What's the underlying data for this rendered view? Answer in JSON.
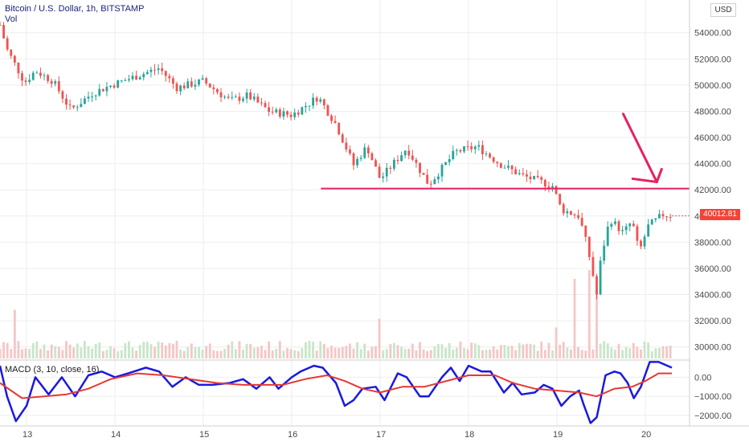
{
  "header": {
    "symbol_line": "Bitcoin / U.S. Dollar, 1h, BITSTAMP",
    "vol_label": "Vol"
  },
  "currency_badge": "USD",
  "last_price_badge": "40012.81",
  "macd_title": "MACD (3, 10, close, 16)",
  "colors": {
    "up": "#26a69a",
    "down": "#ef5350",
    "vol_up": "#c8e6c9",
    "vol_down": "#f5c6c6",
    "annotation": "#e91e63",
    "macd": "#1a1adf",
    "signal": "#e53935",
    "grid": "#eeeeee",
    "badge_bg": "#f44336"
  },
  "chart_data": [
    {
      "type": "candlestick",
      "title": "Bitcoin / U.S. Dollar, 1h, BITSTAMP",
      "x_ticks": [
        "13",
        "14",
        "15",
        "16",
        "17",
        "18",
        "19",
        "20"
      ],
      "x_range_days": [
        12.7,
        20.5
      ],
      "y_ticks": [
        30000,
        32000,
        34000,
        36000,
        38000,
        40000,
        42000,
        44000,
        46000,
        48000,
        50000,
        52000,
        54000
      ],
      "ylim": [
        29000,
        56500
      ],
      "last_price": 40012.81,
      "annotations": {
        "horizontal_line": {
          "price": 42100,
          "from_day": 16.33,
          "to_day": 20.5
        },
        "arrow": {
          "from": {
            "day": 19.75,
            "price": 47800
          },
          "to": {
            "day": 20.13,
            "price": 42600
          }
        }
      },
      "key_points": [
        {
          "day": 12.7,
          "price": 54600
        },
        {
          "day": 12.78,
          "price": 52700
        },
        {
          "day": 12.98,
          "price": 50200
        },
        {
          "day": 13.1,
          "price": 51100
        },
        {
          "day": 13.3,
          "price": 50300
        },
        {
          "day": 13.5,
          "price": 48100
        },
        {
          "day": 13.75,
          "price": 49400
        },
        {
          "day": 14.0,
          "price": 50100
        },
        {
          "day": 14.5,
          "price": 51300
        },
        {
          "day": 14.7,
          "price": 49800
        },
        {
          "day": 15.0,
          "price": 50300
        },
        {
          "day": 15.3,
          "price": 48800
        },
        {
          "day": 15.5,
          "price": 49200
        },
        {
          "day": 15.75,
          "price": 48000
        },
        {
          "day": 16.0,
          "price": 47700
        },
        {
          "day": 16.3,
          "price": 49100
        },
        {
          "day": 16.5,
          "price": 47000
        },
        {
          "day": 16.7,
          "price": 43900
        },
        {
          "day": 16.85,
          "price": 45300
        },
        {
          "day": 17.0,
          "price": 42800
        },
        {
          "day": 17.3,
          "price": 45200
        },
        {
          "day": 17.55,
          "price": 42400
        },
        {
          "day": 17.85,
          "price": 44900
        },
        {
          "day": 18.1,
          "price": 45300
        },
        {
          "day": 18.35,
          "price": 44000
        },
        {
          "day": 18.6,
          "price": 43100
        },
        {
          "day": 18.95,
          "price": 42300
        },
        {
          "day": 19.05,
          "price": 40500
        },
        {
          "day": 19.25,
          "price": 40000
        },
        {
          "day": 19.35,
          "price": 37500
        },
        {
          "day": 19.45,
          "price": 34000
        },
        {
          "day": 19.5,
          "price": 36900
        },
        {
          "day": 19.6,
          "price": 39800
        },
        {
          "day": 19.75,
          "price": 38700
        },
        {
          "day": 19.85,
          "price": 39600
        },
        {
          "day": 19.93,
          "price": 37200
        },
        {
          "day": 20.03,
          "price": 39200
        },
        {
          "day": 20.2,
          "price": 40100
        },
        {
          "day": 20.3,
          "price": 40013
        }
      ],
      "volume_spikes": [
        {
          "day": 12.88,
          "rel": 0.55
        },
        {
          "day": 17.0,
          "rel": 0.45
        },
        {
          "day": 19.0,
          "rel": 0.35
        },
        {
          "day": 19.2,
          "rel": 0.9
        },
        {
          "day": 19.38,
          "rel": 1.0
        },
        {
          "day": 19.45,
          "rel": 0.8
        }
      ]
    },
    {
      "type": "line",
      "title": "MACD (3, 10, close, 16)",
      "y_ticks": [
        0,
        -1000,
        -2000
      ],
      "y_tick_labels": [
        "0.00",
        "−1000.00",
        "−2000.00"
      ],
      "ylim": [
        -2550,
        900
      ],
      "series": [
        {
          "key": "macd",
          "points": [
            {
              "day": 12.7,
              "value": 600
            },
            {
              "day": 12.78,
              "value": -1000
            },
            {
              "day": 12.88,
              "value": -2300
            },
            {
              "day": 13.0,
              "value": -1500
            },
            {
              "day": 13.1,
              "value": 0
            },
            {
              "day": 13.25,
              "value": -900
            },
            {
              "day": 13.4,
              "value": 0
            },
            {
              "day": 13.55,
              "value": -1000
            },
            {
              "day": 13.7,
              "value": 100
            },
            {
              "day": 13.85,
              "value": 300
            },
            {
              "day": 14.0,
              "value": 0
            },
            {
              "day": 14.15,
              "value": 200
            },
            {
              "day": 14.35,
              "value": 500
            },
            {
              "day": 14.5,
              "value": 300
            },
            {
              "day": 14.65,
              "value": -500
            },
            {
              "day": 14.8,
              "value": 0
            },
            {
              "day": 14.95,
              "value": -400
            },
            {
              "day": 15.1,
              "value": -400
            },
            {
              "day": 15.3,
              "value": -300
            },
            {
              "day": 15.45,
              "value": -100
            },
            {
              "day": 15.6,
              "value": -600
            },
            {
              "day": 15.75,
              "value": 0
            },
            {
              "day": 15.85,
              "value": -600
            },
            {
              "day": 16.0,
              "value": 0
            },
            {
              "day": 16.1,
              "value": 300
            },
            {
              "day": 16.25,
              "value": 600
            },
            {
              "day": 16.35,
              "value": 500
            },
            {
              "day": 16.5,
              "value": -300
            },
            {
              "day": 16.6,
              "value": -1500
            },
            {
              "day": 16.7,
              "value": -1200
            },
            {
              "day": 16.8,
              "value": -600
            },
            {
              "day": 16.95,
              "value": -500
            },
            {
              "day": 17.05,
              "value": -1200
            },
            {
              "day": 17.2,
              "value": 200
            },
            {
              "day": 17.3,
              "value": 0
            },
            {
              "day": 17.45,
              "value": -1000
            },
            {
              "day": 17.55,
              "value": -1000
            },
            {
              "day": 17.7,
              "value": 0
            },
            {
              "day": 17.8,
              "value": 500
            },
            {
              "day": 17.9,
              "value": -200
            },
            {
              "day": 18.0,
              "value": 600
            },
            {
              "day": 18.15,
              "value": 300
            },
            {
              "day": 18.25,
              "value": 300
            },
            {
              "day": 18.4,
              "value": -800
            },
            {
              "day": 18.5,
              "value": -300
            },
            {
              "day": 18.6,
              "value": -900
            },
            {
              "day": 18.75,
              "value": -800
            },
            {
              "day": 18.85,
              "value": -400
            },
            {
              "day": 18.95,
              "value": -600
            },
            {
              "day": 19.05,
              "value": -1500
            },
            {
              "day": 19.15,
              "value": -1000
            },
            {
              "day": 19.25,
              "value": -700
            },
            {
              "day": 19.3,
              "value": -1400
            },
            {
              "day": 19.38,
              "value": -2400
            },
            {
              "day": 19.45,
              "value": -2100
            },
            {
              "day": 19.55,
              "value": 100
            },
            {
              "day": 19.65,
              "value": 300
            },
            {
              "day": 19.72,
              "value": 200
            },
            {
              "day": 19.8,
              "value": -300
            },
            {
              "day": 19.87,
              "value": -1100
            },
            {
              "day": 19.95,
              "value": -500
            },
            {
              "day": 20.05,
              "value": 800
            },
            {
              "day": 20.15,
              "value": 800
            },
            {
              "day": 20.3,
              "value": 500
            }
          ]
        },
        {
          "key": "signal",
          "points": [
            {
              "day": 12.7,
              "value": -300
            },
            {
              "day": 12.95,
              "value": -1100
            },
            {
              "day": 13.2,
              "value": -1000
            },
            {
              "day": 13.45,
              "value": -900
            },
            {
              "day": 13.7,
              "value": -600
            },
            {
              "day": 13.95,
              "value": -100
            },
            {
              "day": 14.25,
              "value": 200
            },
            {
              "day": 14.55,
              "value": 100
            },
            {
              "day": 14.85,
              "value": -100
            },
            {
              "day": 15.15,
              "value": -300
            },
            {
              "day": 15.45,
              "value": -400
            },
            {
              "day": 15.7,
              "value": -400
            },
            {
              "day": 15.9,
              "value": -400
            },
            {
              "day": 16.15,
              "value": -100
            },
            {
              "day": 16.4,
              "value": 100
            },
            {
              "day": 16.6,
              "value": -200
            },
            {
              "day": 16.8,
              "value": -600
            },
            {
              "day": 17.0,
              "value": -800
            },
            {
              "day": 17.25,
              "value": -500
            },
            {
              "day": 17.5,
              "value": -500
            },
            {
              "day": 17.75,
              "value": -200
            },
            {
              "day": 18.0,
              "value": 100
            },
            {
              "day": 18.3,
              "value": 100
            },
            {
              "day": 18.5,
              "value": -300
            },
            {
              "day": 18.75,
              "value": -600
            },
            {
              "day": 19.0,
              "value": -700
            },
            {
              "day": 19.25,
              "value": -800
            },
            {
              "day": 19.45,
              "value": -1000
            },
            {
              "day": 19.65,
              "value": -600
            },
            {
              "day": 19.85,
              "value": -500
            },
            {
              "day": 20.0,
              "value": -200
            },
            {
              "day": 20.15,
              "value": 200
            },
            {
              "day": 20.3,
              "value": 200
            }
          ]
        }
      ]
    }
  ]
}
